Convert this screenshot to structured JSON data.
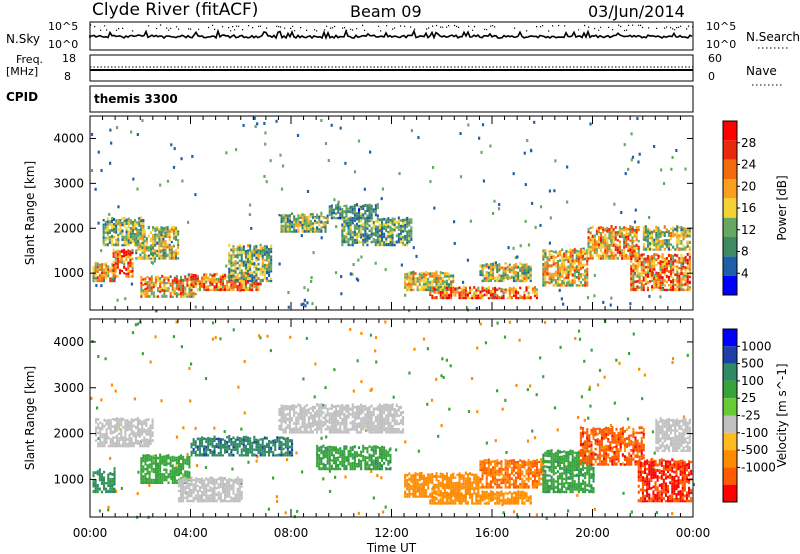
{
  "header": {
    "station": "Clyde River (fitACF)",
    "beam": "Beam 09",
    "date": "03/Jun/2014"
  },
  "summary": {
    "nsky_label": "N.Sky",
    "nsky_ticks": [
      "10^5",
      "10^0"
    ],
    "nsearch_label": "N.Search",
    "nsearch_ticks": [
      "10^5",
      "10^0"
    ],
    "freq_label": "Freq.",
    "freq_unit": "[MHz]",
    "freq_ticks": [
      "18",
      "8"
    ],
    "nave_label": "Nave",
    "nave_ticks": [
      "60",
      "0"
    ],
    "cpid_label": "CPID",
    "cpid_value": "themis 3300"
  },
  "colors": {
    "power_scale": [
      "#0000ff",
      "#1f5fa8",
      "#3e8a63",
      "#66a861",
      "#f5d233",
      "#fa9f1e",
      "#f46a0d",
      "#e82a0a",
      "#ff0000"
    ],
    "velocity_scale": [
      "#0000ff",
      "#1c3fa8",
      "#2e8a62",
      "#37a43a",
      "#66cc33",
      "#c0c0c0",
      "#ffbb22",
      "#ff8c00",
      "#ff5a00",
      "#ff0000"
    ],
    "velocity_ground": "#c0c0c0"
  },
  "chart_data": [
    {
      "type": "heatmap",
      "title": "Power",
      "xlabel": "Time UT",
      "ylabel": "Slant Range [km]",
      "colorbar_label": "Power [dB]",
      "x_ticks": [
        "00:00",
        "04:00",
        "08:00",
        "12:00",
        "16:00",
        "20:00",
        "00:00"
      ],
      "xlim": [
        0,
        24
      ],
      "ylim": [
        180,
        4500
      ],
      "y_ticks": [
        1000,
        2000,
        3000,
        4000
      ],
      "colorbar_ticks": [
        4,
        8,
        12,
        16,
        20,
        24,
        28
      ],
      "colorbar_range": [
        0,
        32
      ],
      "regions": [
        {
          "t": [
            0.1,
            1.0
          ],
          "r": [
            800,
            1200
          ],
          "v": 20
        },
        {
          "t": [
            0.5,
            2.1
          ],
          "r": [
            1600,
            2200
          ],
          "v": 14
        },
        {
          "t": [
            0.9,
            1.7
          ],
          "r": [
            900,
            1500
          ],
          "v": 26
        },
        {
          "t": [
            1.8,
            3.5
          ],
          "r": [
            1300,
            2000
          ],
          "v": 16
        },
        {
          "t": [
            2.0,
            4.2
          ],
          "r": [
            450,
            900
          ],
          "v": 22
        },
        {
          "t": [
            4.0,
            6.8
          ],
          "r": [
            600,
            950
          ],
          "v": 26
        },
        {
          "t": [
            5.5,
            7.2
          ],
          "r": [
            800,
            1600
          ],
          "v": 14
        },
        {
          "t": [
            7.5,
            9.5
          ],
          "r": [
            1900,
            2300
          ],
          "v": 14
        },
        {
          "t": [
            9.5,
            11.5
          ],
          "r": [
            2200,
            2500
          ],
          "v": 10
        },
        {
          "t": [
            10.0,
            12.8
          ],
          "r": [
            1600,
            2200
          ],
          "v": 12
        },
        {
          "t": [
            12.5,
            14.5
          ],
          "r": [
            600,
            1000
          ],
          "v": 18
        },
        {
          "t": [
            13.5,
            17.8
          ],
          "r": [
            420,
            650
          ],
          "v": 26
        },
        {
          "t": [
            15.5,
            17.5
          ],
          "r": [
            800,
            1200
          ],
          "v": 16
        },
        {
          "t": [
            18.0,
            19.8
          ],
          "r": [
            700,
            1500
          ],
          "v": 20
        },
        {
          "t": [
            19.8,
            21.8
          ],
          "r": [
            1300,
            2000
          ],
          "v": 22
        },
        {
          "t": [
            21.5,
            23.9
          ],
          "r": [
            600,
            1400
          ],
          "v": 24
        },
        {
          "t": [
            22.0,
            23.9
          ],
          "r": [
            1500,
            2000
          ],
          "v": 16
        }
      ]
    },
    {
      "type": "heatmap",
      "title": "Velocity",
      "xlabel": "Time UT",
      "ylabel": "Slant Range [km]",
      "colorbar_label": "Velocity [m s^-1]",
      "x_ticks": [
        "00:00",
        "04:00",
        "08:00",
        "12:00",
        "16:00",
        "20:00",
        "00:00"
      ],
      "xlim": [
        0,
        24
      ],
      "ylim": [
        180,
        4500
      ],
      "y_ticks": [
        1000,
        2000,
        3000,
        4000
      ],
      "colorbar_ticks": [
        "1000",
        "500",
        "100",
        "25",
        "-25",
        "-100",
        "-500",
        "-1000"
      ],
      "regions": [
        {
          "t": [
            0.1,
            1.0
          ],
          "r": [
            700,
            1200
          ],
          "v": 300
        },
        {
          "t": [
            0.2,
            2.5
          ],
          "r": [
            1700,
            2300
          ],
          "v": 0
        },
        {
          "t": [
            2.0,
            4.0
          ],
          "r": [
            900,
            1500
          ],
          "v": 150
        },
        {
          "t": [
            3.5,
            6.0
          ],
          "r": [
            500,
            1000
          ],
          "v": 0
        },
        {
          "t": [
            4.0,
            8.0
          ],
          "r": [
            1500,
            1900
          ],
          "v": 400
        },
        {
          "t": [
            7.5,
            12.5
          ],
          "r": [
            2000,
            2600
          ],
          "v": 0
        },
        {
          "t": [
            9.0,
            12.0
          ],
          "r": [
            1200,
            1700
          ],
          "v": 200
        },
        {
          "t": [
            12.5,
            15.5
          ],
          "r": [
            600,
            1100
          ],
          "v": -200
        },
        {
          "t": [
            13.5,
            17.5
          ],
          "r": [
            450,
            700
          ],
          "v": -150
        },
        {
          "t": [
            15.5,
            18.0
          ],
          "r": [
            800,
            1400
          ],
          "v": -300
        },
        {
          "t": [
            18.0,
            20.0
          ],
          "r": [
            700,
            1600
          ],
          "v": 200
        },
        {
          "t": [
            19.5,
            22.0
          ],
          "r": [
            1300,
            2100
          ],
          "v": -400
        },
        {
          "t": [
            21.8,
            23.9
          ],
          "r": [
            500,
            1400
          ],
          "v": -500
        },
        {
          "t": [
            22.5,
            23.9
          ],
          "r": [
            1600,
            2300
          ],
          "v": 0
        }
      ]
    }
  ]
}
